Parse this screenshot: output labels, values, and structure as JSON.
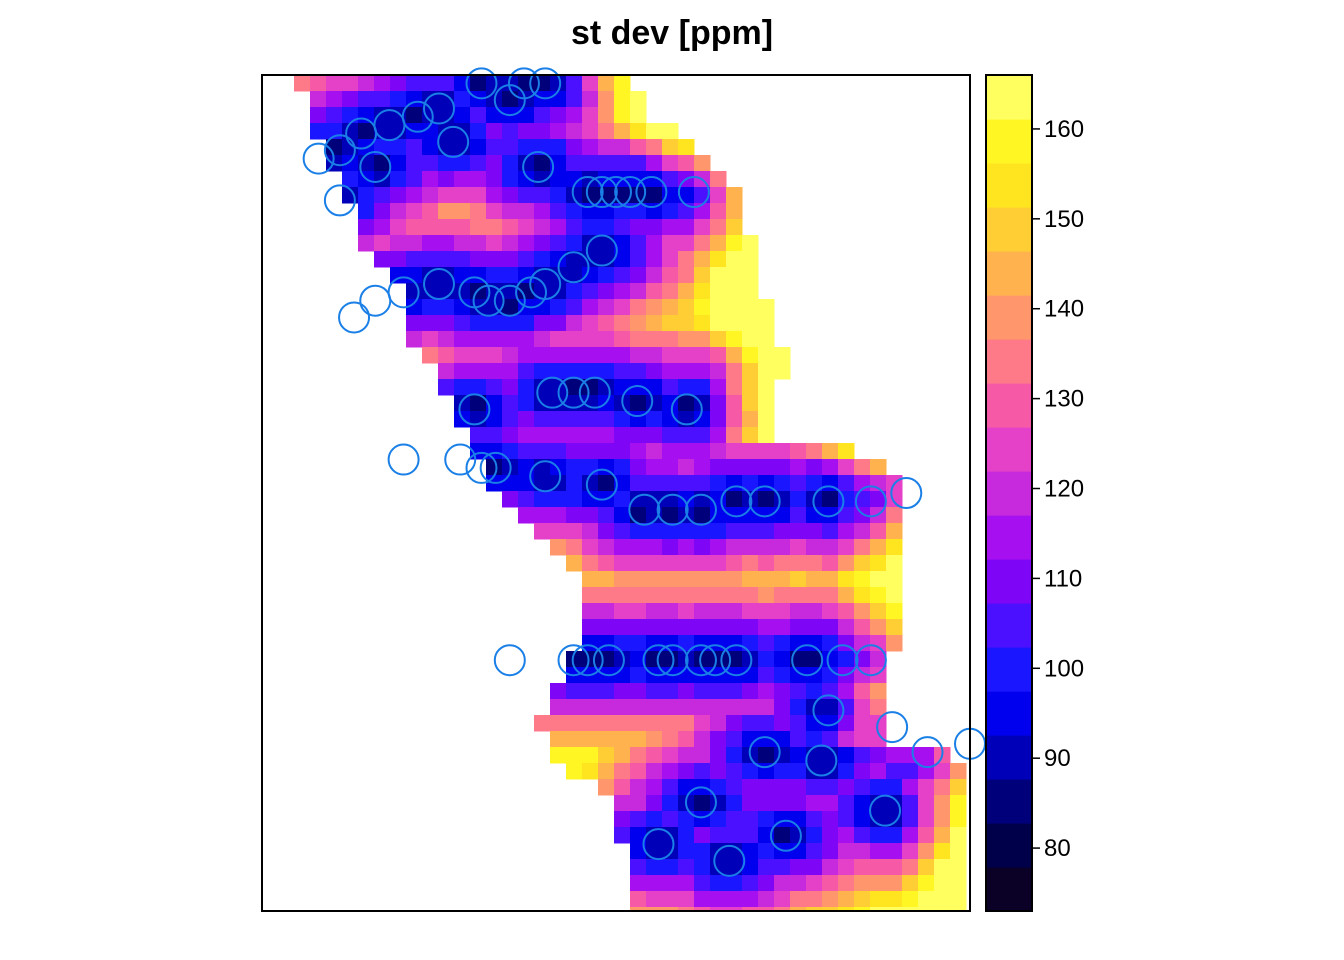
{
  "chart_data": {
    "type": "heatmap",
    "title": "st dev [ppm]",
    "xlabel": "",
    "ylabel": "",
    "axes": "none",
    "colorbar": {
      "placement": "right",
      "range": [
        73,
        166
      ],
      "ticks": [
        80,
        90,
        100,
        110,
        120,
        130,
        140,
        150,
        160
      ],
      "colors": [
        "#0b0026",
        "#00004a",
        "#00007a",
        "#0000b8",
        "#0000ee",
        "#1a16ff",
        "#4b10ff",
        "#7f05f6",
        "#a60ff0",
        "#c72adc",
        "#e440c8",
        "#f65aa6",
        "#ff7a88",
        "#ff966c",
        "#ffb24e",
        "#ffcd34",
        "#ffe420",
        "#fff624",
        "#ffff60"
      ]
    },
    "field": {
      "x_range": [
        0,
        1
      ],
      "y_range": [
        0,
        1
      ],
      "value_bands": [
        {
          "name": "high-east-edge",
          "approx_value": 145
        },
        {
          "name": "stripe-between-transects",
          "approx_value": 120
        },
        {
          "name": "transect-rows",
          "approx_value": 95
        }
      ]
    },
    "sample_points": [
      [
        0.31,
        0.99
      ],
      [
        0.35,
        0.97
      ],
      [
        0.37,
        0.99
      ],
      [
        0.4,
        0.99
      ],
      [
        0.22,
        0.95
      ],
      [
        0.25,
        0.96
      ],
      [
        0.18,
        0.94
      ],
      [
        0.14,
        0.93
      ],
      [
        0.08,
        0.9
      ],
      [
        0.11,
        0.91
      ],
      [
        0.16,
        0.89
      ],
      [
        0.27,
        0.92
      ],
      [
        0.39,
        0.89
      ],
      [
        0.46,
        0.86
      ],
      [
        0.48,
        0.86
      ],
      [
        0.5,
        0.86
      ],
      [
        0.52,
        0.86
      ],
      [
        0.55,
        0.86
      ],
      [
        0.61,
        0.86
      ],
      [
        0.11,
        0.85
      ],
      [
        0.48,
        0.79
      ],
      [
        0.44,
        0.77
      ],
      [
        0.4,
        0.75
      ],
      [
        0.38,
        0.74
      ],
      [
        0.35,
        0.73
      ],
      [
        0.32,
        0.73
      ],
      [
        0.3,
        0.74
      ],
      [
        0.25,
        0.75
      ],
      [
        0.2,
        0.74
      ],
      [
        0.16,
        0.73
      ],
      [
        0.13,
        0.71
      ],
      [
        0.41,
        0.62
      ],
      [
        0.44,
        0.62
      ],
      [
        0.47,
        0.62
      ],
      [
        0.53,
        0.61
      ],
      [
        0.6,
        0.6
      ],
      [
        0.3,
        0.6
      ],
      [
        0.2,
        0.54
      ],
      [
        0.28,
        0.54
      ],
      [
        0.31,
        0.53
      ],
      [
        0.33,
        0.53
      ],
      [
        0.4,
        0.52
      ],
      [
        0.48,
        0.51
      ],
      [
        0.54,
        0.48
      ],
      [
        0.58,
        0.48
      ],
      [
        0.62,
        0.48
      ],
      [
        0.67,
        0.49
      ],
      [
        0.71,
        0.49
      ],
      [
        0.8,
        0.49
      ],
      [
        0.86,
        0.49
      ],
      [
        0.91,
        0.5
      ],
      [
        0.35,
        0.3
      ],
      [
        0.44,
        0.3
      ],
      [
        0.46,
        0.3
      ],
      [
        0.49,
        0.3
      ],
      [
        0.56,
        0.3
      ],
      [
        0.58,
        0.3
      ],
      [
        0.62,
        0.3
      ],
      [
        0.64,
        0.3
      ],
      [
        0.67,
        0.3
      ],
      [
        0.77,
        0.3
      ],
      [
        0.82,
        0.3
      ],
      [
        0.86,
        0.3
      ],
      [
        0.8,
        0.24
      ],
      [
        0.89,
        0.22
      ],
      [
        0.94,
        0.19
      ],
      [
        1.0,
        0.2
      ],
      [
        0.71,
        0.19
      ],
      [
        0.79,
        0.18
      ],
      [
        0.62,
        0.13
      ],
      [
        0.88,
        0.12
      ],
      [
        0.74,
        0.09
      ],
      [
        0.56,
        0.08
      ],
      [
        0.66,
        0.06
      ]
    ]
  }
}
